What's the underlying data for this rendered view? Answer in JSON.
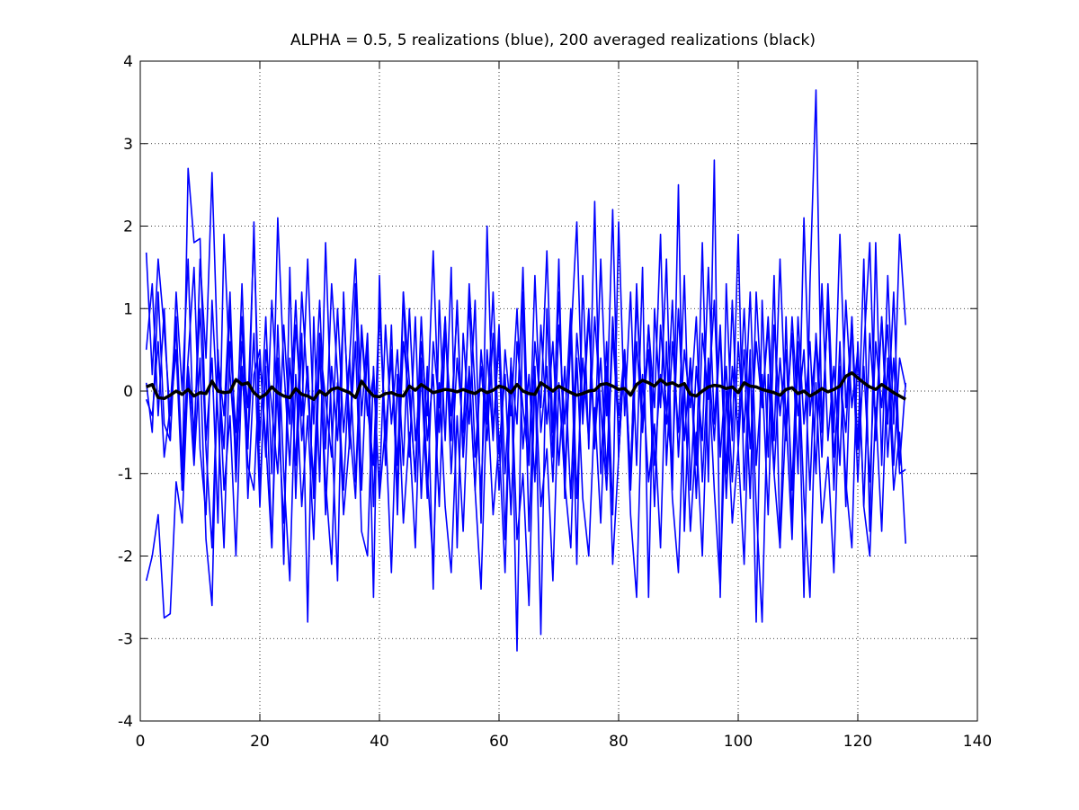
{
  "chart_data": {
    "type": "line",
    "title": "ALPHA = 0.5,    5 realizations (blue), 200 averaged realizations (black)",
    "xlabel": "",
    "ylabel": "",
    "xlim": [
      0,
      140
    ],
    "ylim": [
      -4,
      4
    ],
    "xticks": [
      0,
      20,
      40,
      60,
      80,
      100,
      120,
      140
    ],
    "yticks": [
      -4,
      -3,
      -2,
      -1,
      0,
      1,
      2,
      3,
      4
    ],
    "xtick_labels": [
      "0",
      "20",
      "40",
      "60",
      "80",
      "100",
      "120",
      "140"
    ],
    "ytick_labels": [
      "-4",
      "-3",
      "-2",
      "-1",
      "0",
      "1",
      "2",
      "3",
      "4"
    ],
    "grid": true,
    "x_start": 1,
    "x_end": 128,
    "colors": {
      "realizations": "#0000ff",
      "average": "#000000"
    },
    "series": [
      {
        "values": [
          1.68,
          0.2,
          1.6,
          0.75,
          -0.3,
          0.5,
          -1.2,
          2.7,
          1.8,
          1.85,
          -0.6,
          0.4,
          -1.6,
          1.9,
          0.2,
          -0.8,
          1.3,
          -0.7,
          2.05,
          -1.2,
          0.3,
          -1.9,
          0.4,
          -2.1,
          1.5,
          -1.3,
          0.7,
          -2.8,
          0.9,
          -1.1,
          1.8,
          -0.4,
          -2.3,
          1.2,
          -0.7,
          1.3,
          -1.2,
          0.6,
          -2.5,
          1.4,
          -0.9,
          0.8,
          -1.5,
          1.2,
          -0.8,
          0.9,
          -1.3,
          0.3,
          -2.4,
          1.1,
          -0.6,
          1.5,
          -1.9,
          0.7,
          -0.4,
          1.1,
          -1.6,
          2.0,
          -0.5,
          0.6,
          -1.8,
          0.4,
          -3.15,
          1.2,
          -1.7,
          0.3,
          -2.95,
          1.0,
          -0.8,
          1.6,
          -1.3,
          0.9,
          -2.1,
          1.4,
          -0.7,
          2.3,
          -1.0,
          0.6,
          -1.5,
          2.05,
          -0.3,
          1.2,
          -0.9,
          1.5,
          -2.5,
          1.0,
          -0.2,
          1.6,
          -1.2,
          2.5,
          -1.7,
          0.4,
          -0.9,
          1.8,
          -1.1,
          2.8,
          -2.5,
          1.3,
          -0.6,
          1.9,
          -1.2,
          0.5,
          -2.8,
          1.1,
          -0.8,
          1.4,
          -1.9,
          0.9,
          -1.6,
          0.6,
          -2.5,
          1.3,
          3.65,
          -0.5,
          1.1,
          -1.2,
          0.6,
          -1.4,
          0.9,
          -0.7,
          1.6,
          -1.7,
          1.8,
          -0.9,
          1.4,
          -0.4,
          1.9,
          0.8
        ]
      },
      {
        "values": [
          0.5,
          1.3,
          -0.3,
          1.0,
          -0.6,
          1.2,
          0.0,
          1.6,
          -0.8,
          1.6,
          0.4,
          2.65,
          0.3,
          -0.7,
          1.0,
          -1.1,
          0.6,
          -0.2,
          1.9,
          -0.6,
          0.9,
          -1.0,
          2.1,
          0.3,
          -0.9,
          0.8,
          -0.3,
          1.6,
          -0.4,
          1.1,
          -0.7,
          1.3,
          0.2,
          -1.2,
          0.4,
          1.6,
          -0.3,
          0.7,
          -1.4,
          1.0,
          -0.6,
          0.5,
          -0.9,
          1.2,
          0.1,
          -1.1,
          0.6,
          -0.3,
          1.7,
          -0.5,
          0.9,
          -0.6,
          1.1,
          -0.8,
          1.3,
          0.0,
          -1.2,
          0.5,
          -0.6,
          0.8,
          -1.0,
          0.3,
          -0.4,
          1.5,
          -0.9,
          0.6,
          -0.2,
          1.7,
          -0.5,
          1.2,
          -1.0,
          0.6,
          2.05,
          -0.4,
          0.9,
          -0.7,
          1.6,
          -0.3,
          2.2,
          -0.8,
          0.5,
          -1.1,
          1.3,
          -0.5,
          0.8,
          -0.2,
          1.9,
          -0.9,
          0.6,
          -0.5,
          1.4,
          -1.2,
          0.3,
          -0.6,
          1.5,
          -0.4,
          0.8,
          -1.0,
          1.1,
          -0.7,
          0.5,
          -1.3,
          1.2,
          -0.2,
          0.9,
          -0.6,
          1.6,
          -0.4,
          0.7,
          -1.0,
          2.1,
          -0.3,
          0.6,
          -0.8,
          1.3,
          -0.5,
          1.9,
          -0.2,
          0.8,
          -1.1,
          0.5,
          1.8,
          -0.6,
          0.9,
          -0.4,
          1.2,
          -0.9,
          0.1
        ]
      },
      {
        "values": [
          -2.3,
          -2.0,
          -1.5,
          -2.75,
          -2.7,
          -1.1,
          -1.6,
          0.2,
          -0.9,
          0.4,
          -1.8,
          -2.6,
          0.5,
          -1.2,
          -0.3,
          -2.0,
          0.3,
          -0.9,
          -1.2,
          0.4,
          -0.6,
          -1.9,
          0.8,
          -1.0,
          -2.3,
          0.2,
          -1.4,
          -0.3,
          -1.8,
          0.5,
          -1.1,
          -2.1,
          0.1,
          -1.5,
          -0.6,
          0.6,
          -1.7,
          -2.0,
          0.3,
          -1.3,
          -0.4,
          -2.2,
          0.2,
          -1.6,
          -0.5,
          -1.9,
          0.4,
          -1.0,
          -2.1,
          0.1,
          -1.4,
          -2.2,
          -0.3,
          -1.7,
          0.2,
          -1.2,
          -2.4,
          0.0,
          -1.5,
          -0.6,
          -2.2,
          0.3,
          -1.8,
          -1.0,
          -2.6,
          0.2,
          -1.4,
          -0.7,
          -2.3,
          0.1,
          -1.1,
          -1.9,
          0.4,
          -1.3,
          -2.0,
          -0.2,
          -1.6,
          0.3,
          -2.1,
          -0.8,
          0.5,
          -1.5,
          -2.5,
          0.2,
          -1.1,
          -0.4,
          -1.9,
          0.6,
          -1.3,
          -2.2,
          0.1,
          -1.7,
          -0.5,
          -2.0,
          0.3,
          -1.2,
          -2.4,
          0.0,
          -1.6,
          -0.7,
          -2.1,
          0.4,
          -1.4,
          -2.8,
          0.2,
          -1.0,
          -1.9,
          -0.3,
          -1.8,
          0.5,
          -1.3,
          -2.5,
          0.1,
          -1.6,
          -0.8,
          -2.2,
          0.3,
          -1.1,
          -1.9,
          0.6,
          -1.4,
          -2.0,
          -0.2,
          -1.7,
          0.4,
          -1.2,
          -0.5,
          -1.85
        ]
      },
      {
        "values": [
          0.1,
          -0.5,
          1.2,
          -0.4,
          -0.6,
          0.8,
          -0.9,
          0.4,
          1.5,
          -0.7,
          -1.5,
          1.1,
          -0.3,
          -1.9,
          0.6,
          -0.5,
          0.9,
          -1.3,
          0.2,
          0.5,
          -0.8,
          1.1,
          -0.2,
          -1.6,
          0.4,
          -0.9,
          1.2,
          0.0,
          -1.1,
          0.7,
          -1.5,
          0.3,
          -0.6,
          1.0,
          -0.4,
          -1.3,
          0.8,
          -0.2,
          -0.9,
          1.1,
          -0.5,
          0.4,
          -1.2,
          0.6,
          -0.1,
          -1.0,
          0.9,
          -0.6,
          0.2,
          -1.4,
          0.7,
          -0.3,
          1.0,
          -0.8,
          0.3,
          -1.2,
          0.5,
          -0.4,
          1.2,
          -0.7,
          0.2,
          -1.5,
          0.6,
          -0.2,
          -0.9,
          1.4,
          -0.5,
          0.3,
          -1.1,
          0.8,
          -0.4,
          1.0,
          -1.3,
          0.4,
          -0.6,
          0.9,
          -0.2,
          -1.2,
          0.7,
          -0.5,
          0.3,
          -1.0,
          1.1,
          -0.3,
          0.5,
          -1.4,
          0.8,
          -0.2,
          -0.9,
          1.0,
          -0.6,
          0.4,
          -1.3,
          0.7,
          -0.1,
          1.1,
          -0.8,
          0.3,
          -1.1,
          0.6,
          -0.5,
          1.2,
          -0.9,
          0.2,
          -1.5,
          0.8,
          -0.3,
          0.5,
          -1.2,
          0.9,
          -0.4,
          0.6,
          -1.0,
          1.3,
          -0.6,
          0.3,
          -0.9,
          1.1,
          -0.2,
          0.5,
          -1.4,
          0.7,
          -0.4,
          0.9,
          -0.8,
          0.4,
          -1.0,
          -0.95
        ]
      },
      {
        "values": [
          -0.1,
          -0.3,
          0.6,
          -0.8,
          -0.2,
          0.9,
          -1.2,
          0.3,
          -0.5,
          1.0,
          -0.7,
          -1.9,
          0.4,
          -0.3,
          1.2,
          -0.9,
          0.2,
          -0.6,
          0.7,
          -1.4,
          0.5,
          -0.2,
          -1.0,
          0.8,
          -0.4,
          1.1,
          -0.6,
          0.3,
          -1.3,
          0.6,
          -0.1,
          -0.8,
          1.0,
          -0.5,
          0.4,
          -1.1,
          0.7,
          -0.3,
          0.2,
          -1.2,
          0.8,
          -0.4,
          0.5,
          -0.9,
          1.0,
          -0.6,
          0.2,
          -1.3,
          0.6,
          -0.2,
          0.9,
          -1.0,
          0.4,
          -0.5,
          1.1,
          -0.8,
          0.3,
          -0.6,
          0.7,
          -1.2,
          0.5,
          -0.3,
          1.0,
          -0.7,
          0.2,
          -1.1,
          0.8,
          -0.4,
          0.6,
          -0.9,
          0.3,
          -1.3,
          0.7,
          -0.2,
          1.0,
          -0.6,
          0.4,
          -1.0,
          0.9,
          -0.3,
          0.5,
          -1.2,
          0.6,
          -0.5,
          0.8,
          -0.9,
          0.2,
          -0.4,
          1.1,
          -0.8,
          0.5,
          -0.2,
          0.9,
          -1.1,
          0.4,
          -0.6,
          0.7,
          -1.3,
          0.3,
          -0.5,
          1.0,
          -0.7,
          0.6,
          -0.2,
          0.8,
          -1.0,
          0.4,
          -0.6,
          0.9,
          -0.3,
          0.5,
          -1.2,
          0.7,
          -0.4,
          1.0,
          -0.8,
          0.2,
          -0.5,
          0.9,
          -0.7,
          0.3,
          -1.1,
          0.6,
          -0.2,
          0.8,
          -0.9,
          0.4,
          0.05
        ]
      },
      {
        "values": [
          0.05,
          0.08,
          -0.08,
          -0.09,
          -0.05,
          0.0,
          -0.04,
          0.02,
          -0.06,
          -0.02,
          -0.03,
          0.12,
          0.0,
          -0.02,
          -0.01,
          0.14,
          0.08,
          0.1,
          -0.02,
          -0.08,
          -0.04,
          0.05,
          -0.02,
          -0.06,
          -0.08,
          0.03,
          -0.04,
          -0.06,
          -0.1,
          0.0,
          -0.05,
          0.02,
          0.04,
          0.01,
          -0.02,
          -0.08,
          0.12,
          0.02,
          -0.06,
          -0.07,
          -0.03,
          -0.02,
          -0.05,
          -0.06,
          0.06,
          0.01,
          0.08,
          0.03,
          -0.02,
          0.0,
          0.02,
          0.01,
          -0.01,
          0.02,
          -0.01,
          -0.03,
          0.02,
          -0.02,
          0.01,
          0.06,
          0.04,
          -0.02,
          0.08,
          0.0,
          -0.03,
          -0.04,
          0.1,
          0.05,
          0.0,
          0.06,
          0.02,
          -0.02,
          -0.05,
          -0.03,
          0.0,
          0.01,
          0.08,
          0.09,
          0.06,
          0.02,
          0.03,
          -0.05,
          0.08,
          0.13,
          0.1,
          0.06,
          0.14,
          0.08,
          0.1,
          0.06,
          0.09,
          -0.04,
          -0.06,
          0.0,
          0.05,
          0.07,
          0.06,
          0.03,
          0.05,
          -0.02,
          0.1,
          0.06,
          0.05,
          0.02,
          0.0,
          -0.02,
          -0.05,
          0.02,
          0.04,
          -0.03,
          0.0,
          -0.06,
          -0.02,
          0.03,
          -0.01,
          0.02,
          0.06,
          0.18,
          0.22,
          0.16,
          0.1,
          0.05,
          0.02,
          0.08,
          0.03,
          -0.02,
          -0.06,
          -0.1
        ]
      }
    ]
  }
}
